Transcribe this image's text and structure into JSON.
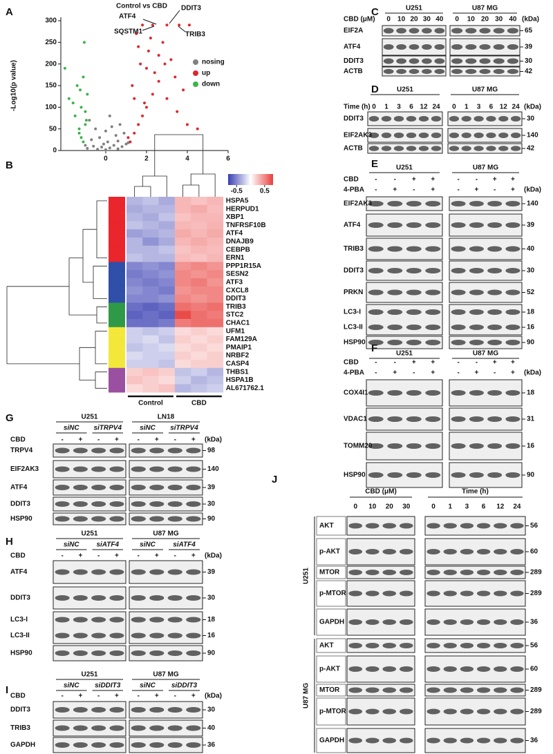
{
  "chart_data": [
    {
      "type": "scatter",
      "panel": "A",
      "title": "Control vs CBD",
      "ylabel": "-Log10(p value)",
      "xlim": [
        -2.2,
        6
      ],
      "xticks": [
        0,
        2,
        4,
        6
      ],
      "ylim": [
        0,
        300
      ],
      "yticks": [
        0,
        50,
        100,
        150,
        200,
        250,
        300
      ],
      "annotations": [
        "ATF4",
        "DDIT3",
        "SQSTM1",
        "TRIB3"
      ],
      "series": [
        {
          "name": "nosing",
          "color": "#808080",
          "x": [
            -0.9,
            -0.6,
            -0.4,
            -0.2,
            0,
            0.2,
            0.4,
            0.6,
            0.8,
            1.0,
            -0.7,
            -0.3,
            0.1,
            0.5,
            0.9,
            -0.5,
            0,
            0.3,
            0.7,
            -0.8,
            0.2,
            -0.1,
            0.6,
            1.1,
            -1.0
          ],
          "y": [
            5,
            10,
            3,
            8,
            2,
            6,
            12,
            4,
            9,
            15,
            25,
            30,
            20,
            35,
            40,
            50,
            45,
            55,
            60,
            70,
            80,
            15,
            22,
            18,
            12
          ]
        },
        {
          "name": "up",
          "color": "#e0262b",
          "x": [
            1.2,
            1.4,
            1.6,
            1.8,
            2.0,
            2.3,
            2.6,
            3.0,
            3.5,
            4.0,
            1.3,
            1.7,
            2.1,
            2.8,
            3.2,
            1.5,
            2.4,
            1.9,
            3.8,
            4.5,
            1.1,
            2.2,
            2.9,
            1.6,
            3.4,
            1.4,
            2.0,
            2.6,
            1.8,
            2.3,
            3.0,
            3.6,
            4.1
          ],
          "y": [
            20,
            40,
            60,
            80,
            100,
            130,
            160,
            120,
            90,
            60,
            150,
            200,
            230,
            250,
            210,
            270,
            180,
            110,
            140,
            50,
            30,
            260,
            200,
            240,
            170,
            120,
            190,
            220,
            290,
            290,
            290,
            290,
            290
          ]
        },
        {
          "name": "down",
          "color": "#3cb44b",
          "x": [
            -1.1,
            -1.3,
            -1.0,
            -1.5,
            -1.2,
            -0.9,
            -1.4,
            -1.1,
            -1.6,
            -1.0,
            -1.3,
            -1.2,
            -0.95,
            -1.8,
            -2.0,
            -1.05,
            -1.25
          ],
          "y": [
            20,
            40,
            60,
            80,
            100,
            130,
            150,
            170,
            110,
            90,
            50,
            30,
            70,
            120,
            190,
            250,
            140
          ]
        }
      ]
    },
    {
      "type": "heatmap",
      "panel": "B",
      "rows": [
        "HSPA5",
        "HERPUD1",
        "XBP1",
        "TNFRSF10B",
        "ATF4",
        "DNAJB9",
        "CEBPB",
        "ERN1",
        "PPP1R15A",
        "SESN2",
        "ATF3",
        "CXCL8",
        "DDIT3",
        "TRIB3",
        "STC2",
        "CHAC1",
        "UFM1",
        "FAM129A",
        "PMAIP1",
        "NRBF2",
        "CASP4",
        "THBS1",
        "HSPA1B",
        "AL671762.1"
      ],
      "row_colors": [
        "#e8262b",
        "#e8262b",
        "#e8262b",
        "#e8262b",
        "#e8262b",
        "#e8262b",
        "#e8262b",
        "#e8262b",
        "#2f4fa8",
        "#2f4fa8",
        "#2f4fa8",
        "#2f4fa8",
        "#2f4fa8",
        "#2e9a48",
        "#2e9a48",
        "#2e9a48",
        "#f3e83a",
        "#f3e83a",
        "#f3e83a",
        "#f3e83a",
        "#f3e83a",
        "#9b4fa0",
        "#9b4fa0",
        "#9b4fa0"
      ],
      "groups": [
        "Control",
        "CBD"
      ],
      "zlim": [
        -0.8,
        0.8
      ],
      "colorbar_ticks": [
        -0.5,
        0.5
      ],
      "colors": [
        "#3a3fb2",
        "#ffffff",
        "#e8403c"
      ],
      "values": [
        [
          -0.3,
          -0.25,
          -0.35,
          0.3,
          0.25,
          0.3
        ],
        [
          -0.35,
          -0.3,
          -0.3,
          0.3,
          0.35,
          0.28
        ],
        [
          -0.3,
          -0.35,
          -0.25,
          0.25,
          0.3,
          0.3
        ],
        [
          -0.25,
          -0.3,
          -0.35,
          0.3,
          0.28,
          0.32
        ],
        [
          -0.4,
          -0.35,
          -0.3,
          0.35,
          0.3,
          0.35
        ],
        [
          -0.3,
          -0.45,
          -0.35,
          0.3,
          0.35,
          0.3
        ],
        [
          -0.3,
          -0.3,
          -0.25,
          0.25,
          0.3,
          0.28
        ],
        [
          -0.25,
          -0.3,
          -0.3,
          0.28,
          0.25,
          0.3
        ],
        [
          -0.5,
          -0.45,
          -0.5,
          0.45,
          0.5,
          0.45
        ],
        [
          -0.55,
          -0.5,
          -0.45,
          0.5,
          0.45,
          0.5
        ],
        [
          -0.5,
          -0.55,
          -0.5,
          0.5,
          0.55,
          0.45
        ],
        [
          -0.45,
          -0.5,
          -0.55,
          0.45,
          0.5,
          0.5
        ],
        [
          -0.5,
          -0.5,
          -0.45,
          0.5,
          0.45,
          0.5
        ],
        [
          -0.6,
          -0.65,
          -0.6,
          0.6,
          0.55,
          0.6
        ],
        [
          -0.65,
          -0.6,
          -0.65,
          0.75,
          0.6,
          0.55
        ],
        [
          -0.6,
          -0.6,
          -0.55,
          0.55,
          0.6,
          0.6
        ],
        [
          -0.2,
          -0.25,
          -0.2,
          0.15,
          0.2,
          0.15
        ],
        [
          -0.2,
          -0.15,
          -0.25,
          0.2,
          0.15,
          0.2
        ],
        [
          -0.25,
          -0.2,
          -0.15,
          0.15,
          0.2,
          0.15
        ],
        [
          -0.15,
          -0.2,
          -0.2,
          0.2,
          0.15,
          0.2
        ],
        [
          -0.2,
          -0.2,
          -0.25,
          0.15,
          0.2,
          0.2
        ],
        [
          0.2,
          0.25,
          0.2,
          -0.25,
          -0.2,
          -0.3
        ],
        [
          0.25,
          0.2,
          0.15,
          -0.2,
          -0.3,
          -0.25
        ],
        [
          0.15,
          0.2,
          0.25,
          -0.3,
          -0.25,
          -0.2
        ]
      ]
    }
  ],
  "blots": {
    "C": {
      "label": "C",
      "groups": [
        "U251",
        "U87 MG"
      ],
      "kda_label": "(kDa)",
      "conditions": [
        {
          "name": "CBD (μM)",
          "left": [
            0,
            10,
            20,
            30,
            40
          ],
          "right": [
            0,
            10,
            20,
            30,
            40
          ]
        }
      ],
      "rows": [
        {
          "names": [
            "EIF2A"
          ],
          "kda": [
            65
          ]
        },
        {
          "names": [
            "ATF4"
          ],
          "kda": [
            39
          ]
        },
        {
          "names": [
            "DDIT3"
          ],
          "kda": [
            30
          ]
        },
        {
          "names": [
            "ACTB"
          ],
          "kda": [
            42
          ]
        }
      ]
    },
    "D": {
      "label": "D",
      "groups": [
        "U251",
        "U87 MG"
      ],
      "kda_label": "(kDa)",
      "conditions": [
        {
          "name": "Time (h)",
          "left": [
            0,
            1,
            3,
            6,
            12,
            24
          ],
          "right": [
            0,
            1,
            3,
            6,
            12,
            24
          ]
        }
      ],
      "rows": [
        {
          "names": [
            "DDIT3"
          ],
          "kda": [
            30
          ]
        },
        {
          "names": [
            "EIF2AK3"
          ],
          "kda": [
            140
          ]
        },
        {
          "names": [
            "ACTB"
          ],
          "kda": [
            42
          ]
        }
      ]
    },
    "E": {
      "label": "E",
      "groups": [
        "U251",
        "U87 MG"
      ],
      "kda_label": "(kDa)",
      "conditions": [
        {
          "name": "CBD",
          "left": [
            "-",
            "-",
            "+",
            "+"
          ],
          "right": [
            "-",
            "-",
            "+",
            "+"
          ]
        },
        {
          "name": "4-PBA",
          "left": [
            "-",
            "+",
            "-",
            "+"
          ],
          "right": [
            "-",
            "+",
            "-",
            "+"
          ]
        }
      ],
      "rows": [
        {
          "names": [
            "EIF2AK3"
          ],
          "kda": [
            140
          ]
        },
        {
          "names": [
            "ATF4"
          ],
          "kda": [
            39
          ]
        },
        {
          "names": [
            "TRIB3"
          ],
          "kda": [
            40
          ]
        },
        {
          "names": [
            "DDIT3"
          ],
          "kda": [
            30
          ]
        },
        {
          "names": [
            "PRKN"
          ],
          "kda": [
            52
          ]
        },
        {
          "names": [
            "LC3-I",
            "LC3-II"
          ],
          "kda": [
            18,
            16
          ]
        },
        {
          "names": [
            "HSP90"
          ],
          "kda": [
            90
          ]
        }
      ]
    },
    "F": {
      "label": "F",
      "groups": [
        "U251",
        "U87 MG"
      ],
      "kda_label": "(kDa)",
      "conditions": [
        {
          "name": "CBD",
          "left": [
            "-",
            "-",
            "+",
            "+"
          ],
          "right": [
            "-",
            "-",
            "+",
            "+"
          ]
        },
        {
          "name": "4-PBA",
          "left": [
            "-",
            "+",
            "-",
            "+"
          ],
          "right": [
            "-",
            "+",
            "-",
            "+"
          ]
        }
      ],
      "rows": [
        {
          "names": [
            "COX4I1"
          ],
          "kda": [
            18
          ]
        },
        {
          "names": [
            "VDAC1"
          ],
          "kda": [
            31
          ]
        },
        {
          "names": [
            "TOMM20"
          ],
          "kda": [
            16
          ]
        },
        {
          "names": [
            "HSP90"
          ],
          "kda": [
            90
          ]
        }
      ]
    },
    "G": {
      "label": "G",
      "groups": [
        "U251",
        "LN18"
      ],
      "subgroups": [
        [
          "siNC",
          "siTRPV4"
        ],
        [
          "siNC",
          "siTRPV4"
        ]
      ],
      "kda_label": "(kDa)",
      "conditions": [
        {
          "name": "CBD",
          "left": [
            "-",
            "+",
            "-",
            "+"
          ],
          "right": [
            "-",
            "+",
            "-",
            "+"
          ]
        }
      ],
      "rows": [
        {
          "names": [
            "TRPV4"
          ],
          "kda": [
            98
          ]
        },
        {
          "names": [
            "EIF2AK3"
          ],
          "kda": [
            140
          ]
        },
        {
          "names": [
            "ATF4"
          ],
          "kda": [
            39
          ]
        },
        {
          "names": [
            "DDIT3"
          ],
          "kda": [
            30
          ]
        },
        {
          "names": [
            "HSP90"
          ],
          "kda": [
            90
          ]
        }
      ]
    },
    "H": {
      "label": "H",
      "groups": [
        "U251",
        "U87 MG"
      ],
      "subgroups": [
        [
          "siNC",
          "siATF4"
        ],
        [
          "siNC",
          "siATF4"
        ]
      ],
      "kda_label": "(kDa)",
      "conditions": [
        {
          "name": "CBD",
          "left": [
            "-",
            "+",
            "-",
            "+"
          ],
          "right": [
            "-",
            "+",
            "-",
            "+"
          ]
        }
      ],
      "rows": [
        {
          "names": [
            "ATF4"
          ],
          "kda": [
            39
          ]
        },
        {
          "names": [
            "DDIT3"
          ],
          "kda": [
            30
          ]
        },
        {
          "names": [
            "LC3-I",
            "LC3-II"
          ],
          "kda": [
            18,
            16
          ]
        },
        {
          "names": [
            "HSP90"
          ],
          "kda": [
            90
          ]
        }
      ]
    },
    "I": {
      "label": "I",
      "groups": [
        "U251",
        "U87 MG"
      ],
      "subgroups": [
        [
          "siNC",
          "siDDIT3"
        ],
        [
          "siNC",
          "siDDIT3"
        ]
      ],
      "kda_label": "(kDa)",
      "conditions": [
        {
          "name": "CBD",
          "left": [
            "-",
            "+",
            "-",
            "+"
          ],
          "right": [
            "-",
            "+",
            "-",
            "+"
          ]
        }
      ],
      "rows": [
        {
          "names": [
            "DDIT3"
          ],
          "kda": [
            30
          ]
        },
        {
          "names": [
            "TRIB3"
          ],
          "kda": [
            40
          ]
        },
        {
          "names": [
            "GAPDH"
          ],
          "kda": [
            36
          ]
        }
      ]
    }
  },
  "blot_j": {
    "label": "J",
    "groups": [
      "CBD (μM)",
      "Time (h)"
    ],
    "lanes": [
      [
        0,
        10,
        20,
        30
      ],
      [
        0,
        1,
        3,
        6,
        12,
        24
      ]
    ],
    "cell_lines": [
      {
        "name": "U251",
        "rows": [
          {
            "name": "AKT",
            "kda": 56
          },
          {
            "name": "p-AKT",
            "kda": 60
          },
          {
            "name": "MTOR",
            "kda": 289
          },
          {
            "name": "p-MTOR",
            "kda": 289
          },
          {
            "name": "GAPDH",
            "kda": 36
          }
        ]
      },
      {
        "name": "U87 MG",
        "rows": [
          {
            "name": "AKT",
            "kda": 56
          },
          {
            "name": "p-AKT",
            "kda": 60
          },
          {
            "name": "MTOR",
            "kda": 289
          },
          {
            "name": "p-MTOR",
            "kda": 289
          },
          {
            "name": "GAPDH",
            "kda": 36
          }
        ]
      }
    ]
  }
}
